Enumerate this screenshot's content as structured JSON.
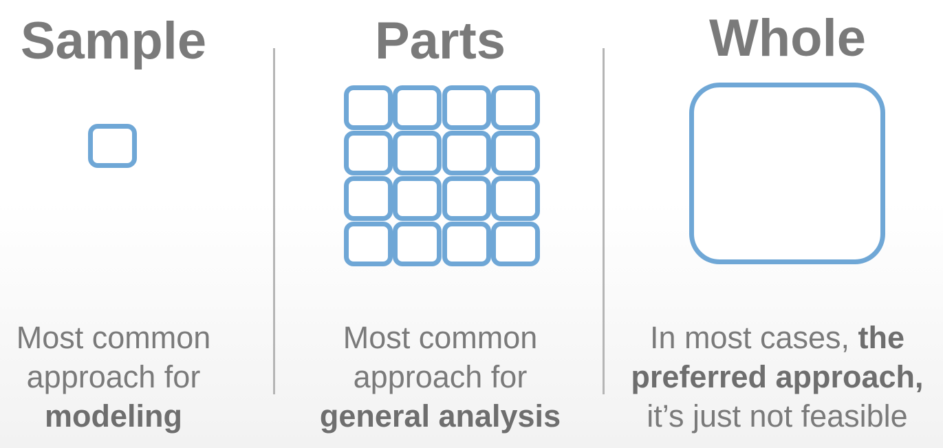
{
  "columns": [
    {
      "title": "Sample",
      "description": [
        {
          "plain": "Most common"
        },
        {
          "plain": "approach for"
        },
        {
          "bold": "modeling"
        }
      ]
    },
    {
      "title": "Parts",
      "description": [
        {
          "plain": "Most common"
        },
        {
          "plain": "approach for"
        },
        {
          "bold": "general analysis"
        }
      ]
    },
    {
      "title": "Whole",
      "description": [
        {
          "plain": "In most cases, ",
          "bold": "the"
        },
        {
          "bold": "preferred approach,"
        },
        {
          "plain": "it’s just not feasible"
        }
      ]
    }
  ],
  "colors": {
    "square_stroke": "#6fa7d6",
    "text": "#7a7a7a",
    "divider": "#b5b5b5"
  },
  "parts_grid": {
    "rows": 4,
    "cols": 4
  }
}
